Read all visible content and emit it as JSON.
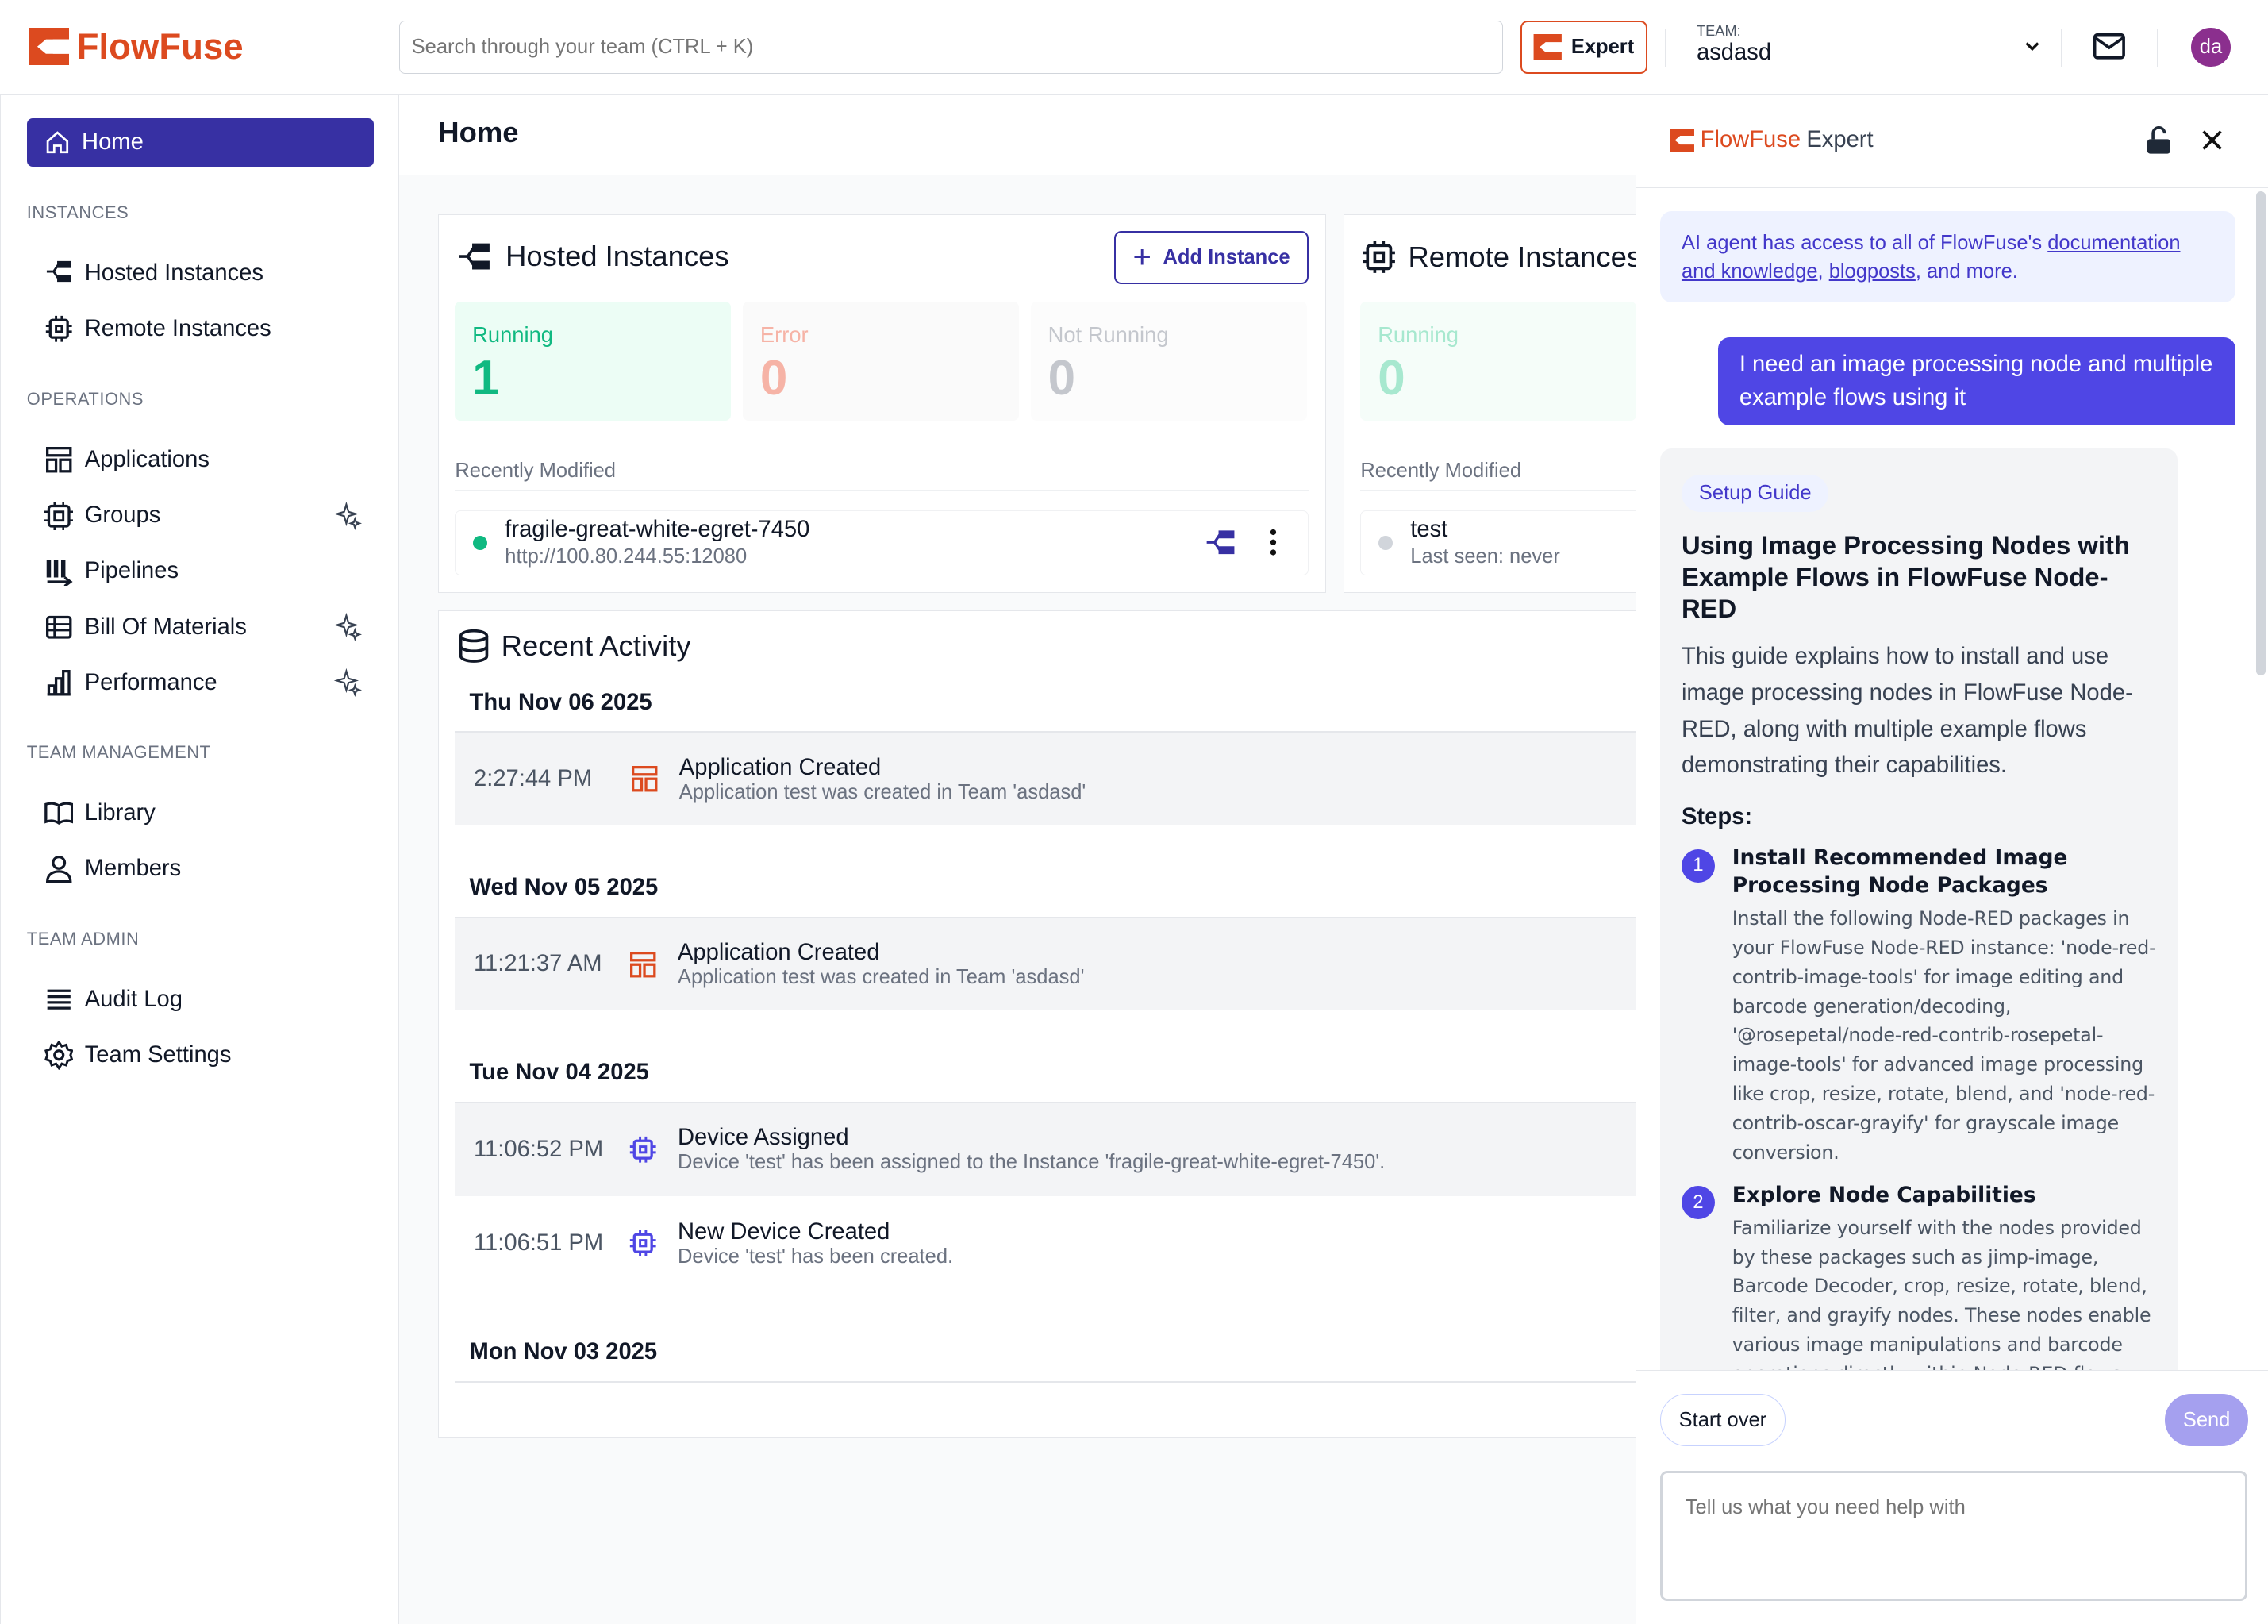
{
  "header": {
    "brand": "FlowFuse",
    "search_placeholder": "Search through your team (CTRL + K)",
    "expert_label": "Expert",
    "team_label": "TEAM:",
    "team_name": "asdasd",
    "avatar_initials": "da",
    "accent": "#dc4a1f"
  },
  "sidebar": {
    "home": "Home",
    "sections": [
      {
        "label": "INSTANCES",
        "items": [
          {
            "label": "Hosted Instances",
            "icon": "hosted-icon"
          },
          {
            "label": "Remote Instances",
            "icon": "chip-icon"
          }
        ]
      },
      {
        "label": "OPERATIONS",
        "items": [
          {
            "label": "Applications",
            "icon": "applications-icon"
          },
          {
            "label": "Groups",
            "icon": "groups-icon",
            "sparkle": true
          },
          {
            "label": "Pipelines",
            "icon": "pipelines-icon"
          },
          {
            "label": "Bill Of Materials",
            "icon": "bom-icon",
            "sparkle": true
          },
          {
            "label": "Performance",
            "icon": "chart-icon",
            "sparkle": true
          }
        ]
      },
      {
        "label": "TEAM MANAGEMENT",
        "items": [
          {
            "label": "Library",
            "icon": "book-icon"
          },
          {
            "label": "Members",
            "icon": "users-icon"
          }
        ]
      },
      {
        "label": "TEAM ADMIN",
        "items": [
          {
            "label": "Audit Log",
            "icon": "list-icon"
          },
          {
            "label": "Team Settings",
            "icon": "gear-icon"
          }
        ]
      }
    ]
  },
  "main": {
    "title": "Home",
    "hosted": {
      "title": "Hosted Instances",
      "add_label": "Add Instance",
      "stats": [
        {
          "label": "Running",
          "value": "1"
        },
        {
          "label": "Error",
          "value": "0"
        },
        {
          "label": "Not Running",
          "value": "0"
        }
      ],
      "recent_label": "Recently Modified",
      "instance": {
        "name": "fragile-great-white-egret-7450",
        "url": "http://100.80.244.55:12080",
        "status": "running"
      }
    },
    "remote": {
      "title": "Remote Instances",
      "stats": [
        {
          "label": "Running",
          "value": "0"
        }
      ],
      "recent_label": "Recently Modified",
      "device": {
        "name": "test",
        "last_seen": "Last seen: never"
      }
    },
    "activity": {
      "title": "Recent Activity",
      "days": [
        {
          "date": "Thu Nov 06 2025",
          "events": [
            {
              "time": "2:27:44 PM",
              "title": "Application Created",
              "desc": "Application test was created in Team 'asdasd'",
              "icon": "application-icon"
            }
          ]
        },
        {
          "date": "Wed Nov 05 2025",
          "events": [
            {
              "time": "11:21:37 AM",
              "title": "Application Created",
              "desc": "Application test was created in Team 'asdasd'",
              "icon": "application-icon"
            }
          ]
        },
        {
          "date": "Tue Nov 04 2025",
          "events": [
            {
              "time": "11:06:52 PM",
              "title": "Device Assigned",
              "desc": "Device 'test' has been assigned to the Instance 'fragile-great-white-egret-7450'.",
              "icon": "chip-icon"
            },
            {
              "time": "11:06:51 PM",
              "title": "New Device Created",
              "desc": "Device 'test' has been created.",
              "icon": "chip-icon"
            }
          ]
        },
        {
          "date": "Mon Nov 03 2025",
          "events": []
        }
      ]
    }
  },
  "expert": {
    "brand": "FlowFuse",
    "title": "Expert",
    "info": {
      "prefix": "AI agent has access to all of FlowFuse's ",
      "link1": "documentation and knowledge",
      "sep": ", ",
      "link2": "blogposts",
      "suffix": ", and more."
    },
    "user_message": "I need an image processing node and multiple example flows using it",
    "guide": {
      "tag": "Setup Guide",
      "title": "Using Image Processing Nodes with Example Flows in FlowFuse Node-RED",
      "intro": "This guide explains how to install and use image processing nodes in FlowFuse Node-RED, along with multiple example flows demonstrating their capabilities.",
      "steps_label": "Steps:",
      "steps": [
        {
          "n": "1",
          "title": "Install Recommended Image Processing Node Packages",
          "desc": "Install the following Node-RED packages in your FlowFuse Node-RED instance: 'node-red-contrib-image-tools' for image editing and barcode generation/decoding, '@rosepetal/node-red-contrib-rosepetal-image-tools' for advanced image processing like crop, resize, rotate, blend, and 'node-red-contrib-oscar-grayify' for grayscale image conversion."
        },
        {
          "n": "2",
          "title": "Explore Node Capabilities",
          "desc": "Familiarize yourself with the nodes provided by these packages such as jimp-image, Barcode Decoder, crop, resize, rotate, blend, filter, and grayify nodes. These nodes enable various image manipulations and barcode operations directly within Node-RED flows."
        }
      ]
    },
    "start_over": "Start over",
    "send": "Send",
    "input_placeholder": "Tell us what you need help with"
  }
}
